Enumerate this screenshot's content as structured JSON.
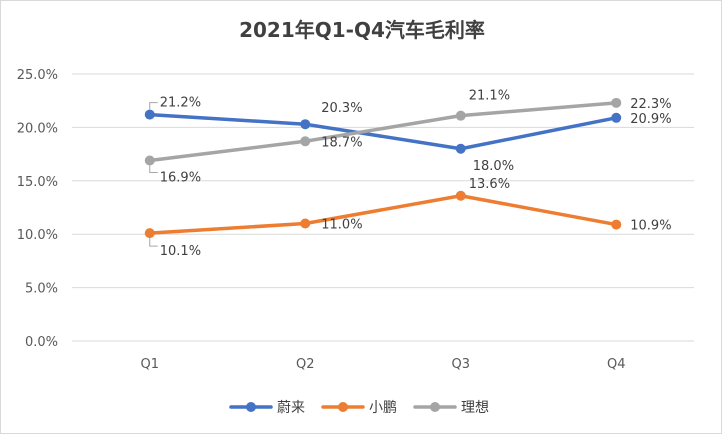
{
  "chart_data": {
    "type": "line",
    "title": "2021年Q1-Q4汽车毛利率",
    "categories": [
      "Q1",
      "Q2",
      "Q3",
      "Q4"
    ],
    "y_ticks": [
      "0.0%",
      "5.0%",
      "10.0%",
      "15.0%",
      "20.0%",
      "25.0%"
    ],
    "ylim": [
      0,
      25
    ],
    "grid": true,
    "legend_position": "bottom",
    "series": [
      {
        "name": "蔚来",
        "color": "#4472C4",
        "values": [
          21.2,
          20.3,
          18.0,
          20.9
        ],
        "labels": [
          "21.2%",
          "20.3%",
          "18.0%",
          "20.9%"
        ]
      },
      {
        "name": "小鹏",
        "color": "#ED7D31",
        "values": [
          10.1,
          11.0,
          13.6,
          10.9
        ],
        "labels": [
          "10.1%",
          "11.0%",
          "13.6%",
          "10.9%"
        ]
      },
      {
        "name": "理想",
        "color": "#A5A5A5",
        "values": [
          16.9,
          18.7,
          21.1,
          22.3
        ],
        "labels": [
          "16.9%",
          "18.7%",
          "21.1%",
          "22.3%"
        ]
      }
    ]
  }
}
